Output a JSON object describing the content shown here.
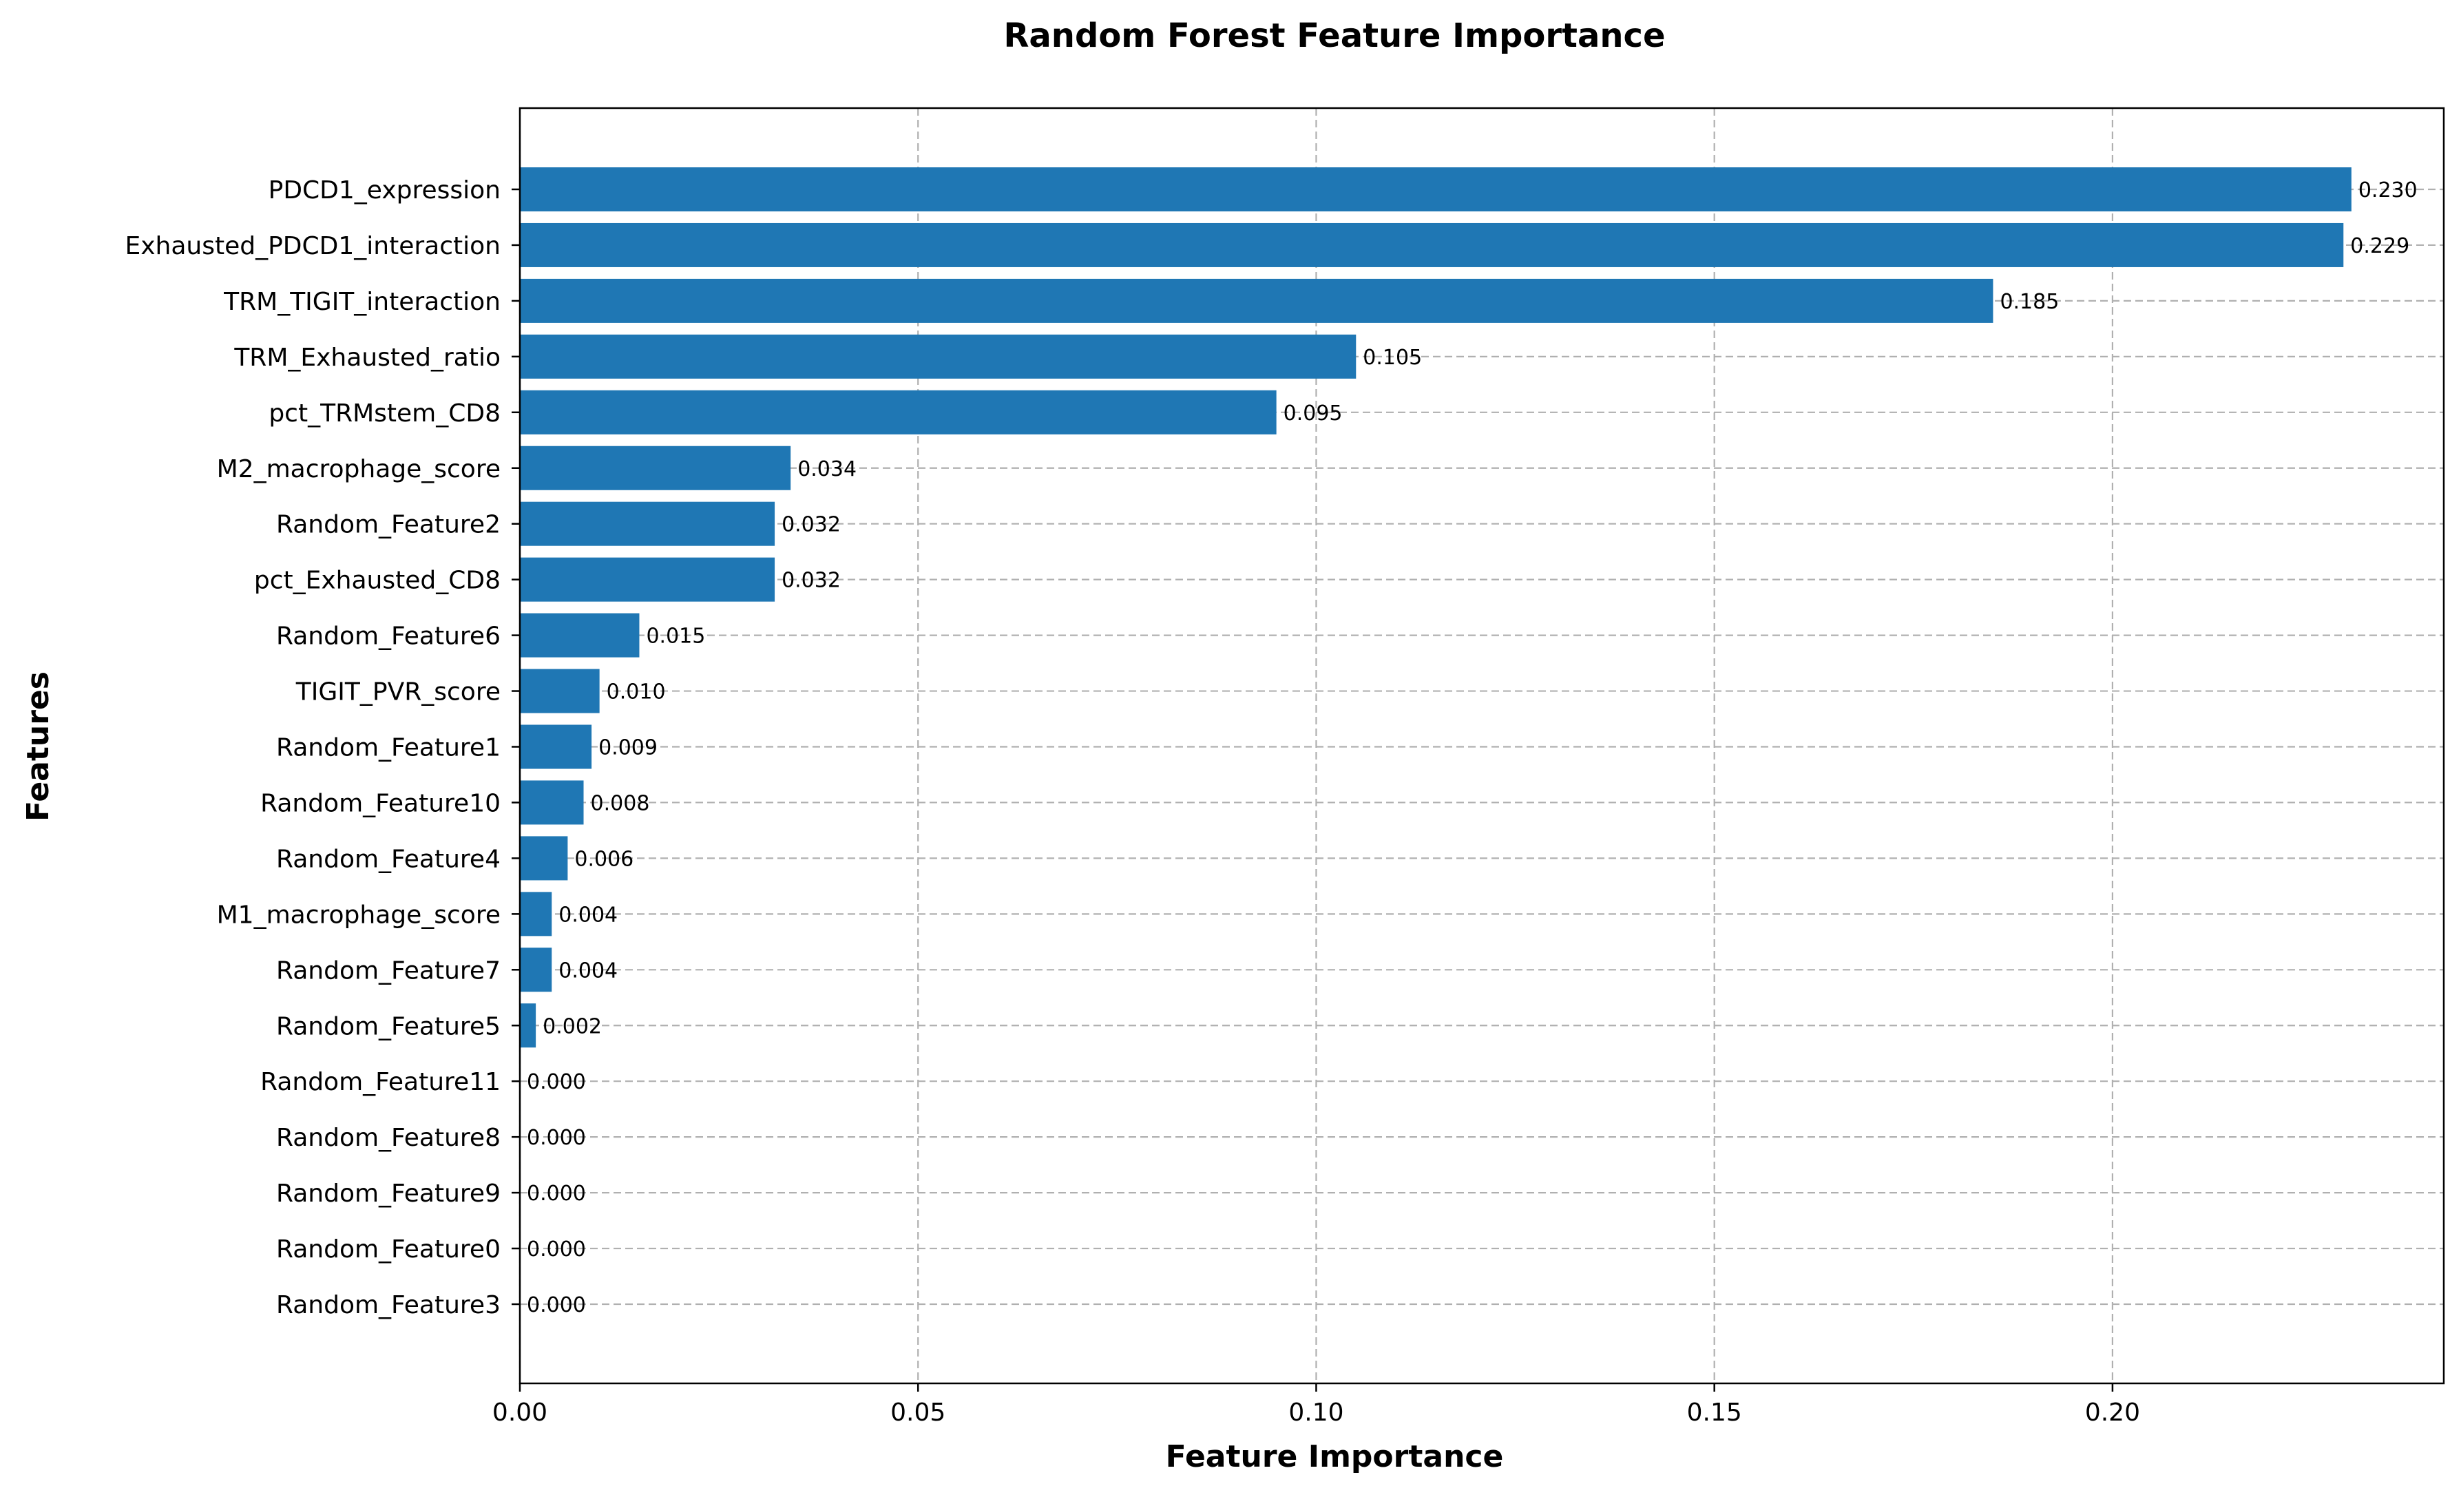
{
  "chart_data": {
    "type": "bar",
    "orientation": "horizontal",
    "title": "Random Forest Feature Importance",
    "xlabel": "Feature Importance",
    "ylabel": "Features",
    "xlim": [
      0,
      0.2416
    ],
    "xticks": [
      0.0,
      0.05,
      0.1,
      0.15,
      0.2
    ],
    "xtick_labels": [
      "0.00",
      "0.05",
      "0.10",
      "0.15",
      "0.20"
    ],
    "grid": true,
    "bar_color": "#1f77b4",
    "categories": [
      "PDCD1_expression",
      "Exhausted_PDCD1_interaction",
      "TRM_TIGIT_interaction",
      "TRM_Exhausted_ratio",
      "pct_TRMstem_CD8",
      "M2_macrophage_score",
      "Random_Feature2",
      "pct_Exhausted_CD8",
      "Random_Feature6",
      "TIGIT_PVR_score",
      "Random_Feature1",
      "Random_Feature10",
      "Random_Feature4",
      "M1_macrophage_score",
      "Random_Feature7",
      "Random_Feature5",
      "Random_Feature11",
      "Random_Feature8",
      "Random_Feature9",
      "Random_Feature0",
      "Random_Feature3"
    ],
    "values": [
      0.23,
      0.229,
      0.185,
      0.105,
      0.095,
      0.034,
      0.032,
      0.032,
      0.015,
      0.01,
      0.009,
      0.008,
      0.006,
      0.004,
      0.004,
      0.002,
      0.0,
      0.0,
      0.0,
      0.0,
      0.0
    ],
    "value_labels": [
      "0.230",
      "0.229",
      "0.185",
      "0.105",
      "0.095",
      "0.034",
      "0.032",
      "0.032",
      "0.015",
      "0.010",
      "0.009",
      "0.008",
      "0.006",
      "0.004",
      "0.004",
      "0.002",
      "0.000",
      "0.000",
      "0.000",
      "0.000",
      "0.000"
    ]
  }
}
